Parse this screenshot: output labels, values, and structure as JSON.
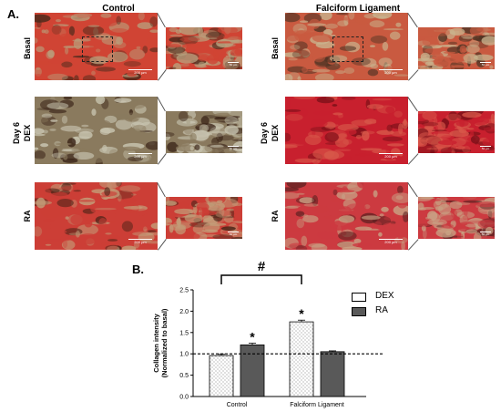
{
  "panel_a": {
    "label": "A.",
    "columns": [
      {
        "title": "Control"
      },
      {
        "title": "Falciform Ligament"
      }
    ],
    "group_label": "Day 6",
    "rows": [
      {
        "label": "Basal"
      },
      {
        "label": "DEX"
      },
      {
        "label": "RA"
      }
    ],
    "scale_main": "200 µm",
    "scale_zoom": "50 µm",
    "tiles": [
      {
        "id": "control-basal",
        "base": "#d04434",
        "tint": "#b8a27e",
        "dark": "#4a2a1c"
      },
      {
        "id": "fl-basal",
        "base": "#c95a40",
        "tint": "#c9b48e",
        "dark": "#503424"
      },
      {
        "id": "control-dex",
        "base": "#8a7a5e",
        "tint": "#c8c4b0",
        "dark": "#3a2418"
      },
      {
        "id": "fl-dex",
        "base": "#c8202e",
        "tint": "#d8584a",
        "dark": "#7a1018"
      },
      {
        "id": "control-ra",
        "base": "#cc3e36",
        "tint": "#c39c78",
        "dark": "#4c2418"
      },
      {
        "id": "fl-ra",
        "base": "#cc3a40",
        "tint": "#c8a284",
        "dark": "#5a2020"
      }
    ]
  },
  "panel_b": {
    "label": "B."
  },
  "chart_data": {
    "type": "bar",
    "categories": [
      "Control",
      "Falciform Ligament"
    ],
    "series": [
      {
        "name": "DEX",
        "values": [
          0.96,
          1.75
        ],
        "errors": [
          0.03,
          0.04
        ],
        "pattern": "dotted",
        "color": "#ffffff"
      },
      {
        "name": "RA",
        "values": [
          1.21,
          1.05
        ],
        "errors": [
          0.04,
          0.02
        ],
        "pattern": "solid",
        "color": "#595959"
      }
    ],
    "ylabel": "Collagen intensity\n(Normalized to basal)",
    "ylim": [
      0,
      2.5
    ],
    "yticks": [
      "0.0",
      "0.5",
      "1.0",
      "1.5",
      "2.0",
      "2.5"
    ],
    "reference_line": 1.0,
    "significance": {
      "star": "*",
      "stars_on": [
        [
          0,
          1
        ],
        [
          1,
          0
        ]
      ],
      "bracket_label": "#",
      "bracket_between": [
        [
          0,
          0
        ],
        [
          1,
          0
        ]
      ]
    },
    "legend": "right",
    "grid": false
  }
}
